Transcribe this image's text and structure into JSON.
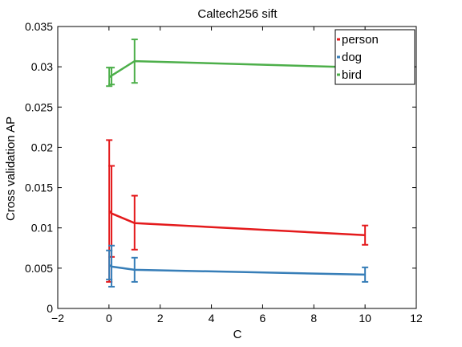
{
  "chart_data": {
    "type": "line",
    "title": "Caltech256 sift",
    "xlabel": "C",
    "ylabel": "Cross validation AP",
    "xlim": [
      -2,
      12
    ],
    "ylim": [
      0,
      0.035
    ],
    "x_ticks": [
      "−2",
      "0",
      "2",
      "4",
      "6",
      "8",
      "10",
      "12"
    ],
    "x_tick_values": [
      -2,
      0,
      2,
      4,
      6,
      8,
      10,
      12
    ],
    "y_ticks": [
      "0",
      "0.005",
      "0.01",
      "0.015",
      "0.02",
      "0.025",
      "0.03",
      "0.035"
    ],
    "y_tick_values": [
      0,
      0.005,
      0.01,
      0.015,
      0.02,
      0.025,
      0.03,
      0.035
    ],
    "grid": false,
    "legend_position": "top-right",
    "series": [
      {
        "name": "person",
        "color": "#e41a1c",
        "x": [
          0.01,
          0.1,
          1,
          10
        ],
        "y": [
          0.0121,
          0.0118,
          0.0106,
          0.0091
        ],
        "err_low": [
          0.0033,
          0.0064,
          0.0073,
          0.0079
        ],
        "err_high": [
          0.0209,
          0.0177,
          0.014,
          0.0103
        ]
      },
      {
        "name": "dog",
        "color": "#377eb8",
        "x": [
          0.01,
          0.1,
          1,
          10
        ],
        "y": [
          0.0054,
          0.0052,
          0.0048,
          0.0042
        ],
        "err_low": [
          0.0036,
          0.0027,
          0.0033,
          0.0033
        ],
        "err_high": [
          0.0072,
          0.0078,
          0.0063,
          0.0051
        ]
      },
      {
        "name": "bird",
        "color": "#4daf4a",
        "x": [
          0.01,
          0.1,
          1,
          10
        ],
        "y": [
          0.0287,
          0.0289,
          0.0307,
          0.0299
        ],
        "err_low": [
          0.0276,
          0.0278,
          0.028,
          0.0298
        ],
        "err_high": [
          0.0299,
          0.0299,
          0.0334,
          0.03
        ]
      }
    ]
  }
}
